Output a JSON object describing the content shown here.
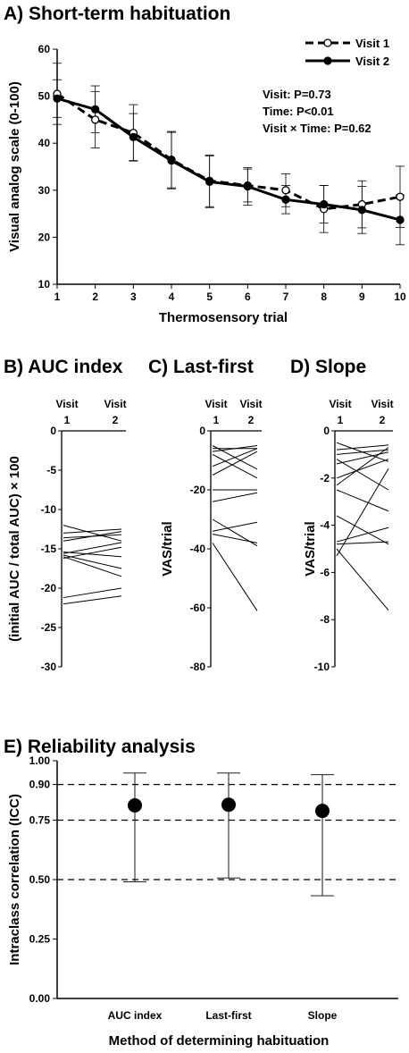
{
  "chart_data": [
    {
      "id": "A",
      "type": "line",
      "title": "A) Short-term habituation",
      "xlabel": "Thermosensory trial",
      "ylabel": "Visual analog scale (0-100)",
      "x": [
        1,
        2,
        3,
        4,
        5,
        6,
        7,
        8,
        9,
        10
      ],
      "xlim": [
        1,
        10
      ],
      "ylim": [
        10,
        60
      ],
      "yticks": [
        10,
        20,
        30,
        40,
        50,
        60
      ],
      "legend_position": "top-right",
      "series": [
        {
          "name": "Visit 1",
          "style": "dashed",
          "marker": "open-circle",
          "values": [
            50.5,
            45,
            42.2,
            36.5,
            32,
            31,
            30,
            26,
            27,
            28.6
          ],
          "err": [
            6.5,
            6,
            6,
            6,
            5.5,
            3.5,
            3.5,
            5,
            5,
            6.5
          ]
        },
        {
          "name": "Visit 2",
          "style": "solid",
          "marker": "filled-circle",
          "values": [
            49.5,
            47.2,
            41.3,
            36.3,
            31.8,
            30.8,
            28,
            27,
            25.8,
            23.7
          ],
          "err": [
            4,
            5,
            5,
            6,
            5.5,
            4,
            3,
            4,
            5,
            5.3
          ]
        }
      ],
      "annotations": [
        "Visit: P=0.73",
        "Time: P<0.01",
        "Visit × Time: P=0.62"
      ]
    },
    {
      "id": "B",
      "type": "line",
      "title": "B) AUC index",
      "ylabel": "(initial AUC / total AUC) × 100",
      "categories": [
        "Visit 1",
        "Visit 2"
      ],
      "ylim": [
        -30,
        0
      ],
      "yticks": [
        0,
        -5,
        -10,
        -15,
        -20,
        -25,
        -30
      ],
      "pairs": [
        [
          -12,
          -14
        ],
        [
          -13,
          -12.5
        ],
        [
          -13.6,
          -13.2
        ],
        [
          -14,
          -12.8
        ],
        [
          -15.4,
          -16
        ],
        [
          -15.6,
          -14.2
        ],
        [
          -15.8,
          -17.5
        ],
        [
          -16,
          -18.5
        ],
        [
          -16.2,
          -14.8
        ],
        [
          -21.2,
          -20
        ],
        [
          -22,
          -21
        ]
      ]
    },
    {
      "id": "C",
      "type": "line",
      "title": "C) Last-first",
      "ylabel": "VAS/trial",
      "categories": [
        "Visit 1",
        "Visit 2"
      ],
      "ylim": [
        -80,
        0
      ],
      "yticks": [
        0,
        -20,
        -40,
        -60,
        -80
      ],
      "pairs": [
        [
          -5,
          -13
        ],
        [
          -6,
          -6
        ],
        [
          -7,
          -5
        ],
        [
          -8,
          -16
        ],
        [
          -12,
          -6
        ],
        [
          -15,
          -7
        ],
        [
          -20,
          -20
        ],
        [
          -24,
          -21
        ],
        [
          -30,
          -39
        ],
        [
          -34,
          -31
        ],
        [
          -35,
          -38
        ],
        [
          -38,
          -61
        ]
      ]
    },
    {
      "id": "D",
      "type": "line",
      "title": "D) Slope",
      "ylabel": "VAS/trial",
      "categories": [
        "Visit 1",
        "Visit 2"
      ],
      "ylim": [
        -10,
        0
      ],
      "yticks": [
        0,
        -2,
        -4,
        -6,
        -8,
        -10
      ],
      "pairs": [
        [
          -0.5,
          -1.3
        ],
        [
          -0.8,
          -0.6
        ],
        [
          -1.0,
          -0.8
        ],
        [
          -1.2,
          -2.5
        ],
        [
          -1.4,
          -0.9
        ],
        [
          -2.0,
          -1.2
        ],
        [
          -2.3,
          -0.7
        ],
        [
          -2.5,
          -3.4
        ],
        [
          -3.6,
          -4.8
        ],
        [
          -4.7,
          -4.1
        ],
        [
          -4.8,
          -4.7
        ],
        [
          -5.0,
          -7.6
        ],
        [
          -5.3,
          -1.6
        ]
      ]
    },
    {
      "id": "E",
      "type": "scatter",
      "title": "E) Reliability analysis",
      "xlabel": "Method of determining habituation",
      "ylabel": "Intraclass correlation (ICC)",
      "categories": [
        "AUC index",
        "Last-first",
        "Slope"
      ],
      "values": [
        0.812,
        0.815,
        0.789
      ],
      "ci_low": [
        0.491,
        0.507,
        0.432
      ],
      "ci_high": [
        0.948,
        0.948,
        0.941
      ],
      "ylim": [
        0,
        1
      ],
      "yticks": [
        "0.00",
        "0.25",
        "0.50",
        "0.75",
        "0.90",
        "1.00"
      ],
      "reference_lines": [
        0.5,
        0.75,
        0.9
      ]
    }
  ]
}
